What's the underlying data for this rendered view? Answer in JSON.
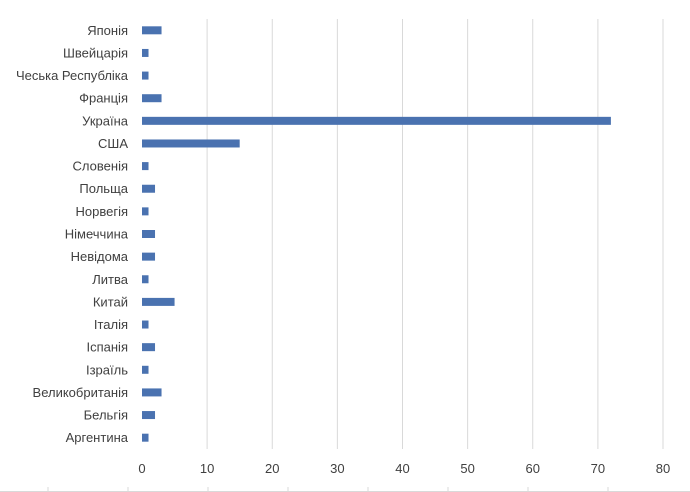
{
  "chart_data": {
    "type": "bar",
    "orientation": "horizontal",
    "categories": [
      "Японія",
      "Швейцарія",
      "Чеська Республіка",
      "Франція",
      "Україна",
      "США",
      "Словенія",
      "Польща",
      "Норвегія",
      "Німеччина",
      "Невідома",
      "Литва",
      "Китай",
      "Італія",
      "Іспанія",
      "Ізраїль",
      "Великобританія",
      "Бельгія",
      "Аргентина"
    ],
    "values": [
      3,
      1,
      1,
      3,
      72,
      15,
      1,
      2,
      1,
      2,
      2,
      1,
      5,
      1,
      2,
      1,
      3,
      2,
      1
    ],
    "xlim": [
      0,
      80
    ],
    "xticks": [
      0,
      10,
      20,
      30,
      40,
      50,
      60,
      70,
      80
    ],
    "grid": true,
    "bar_color": "#4a72b0",
    "gridline_color": "#d9d9d9",
    "label_color": "#404040"
  }
}
